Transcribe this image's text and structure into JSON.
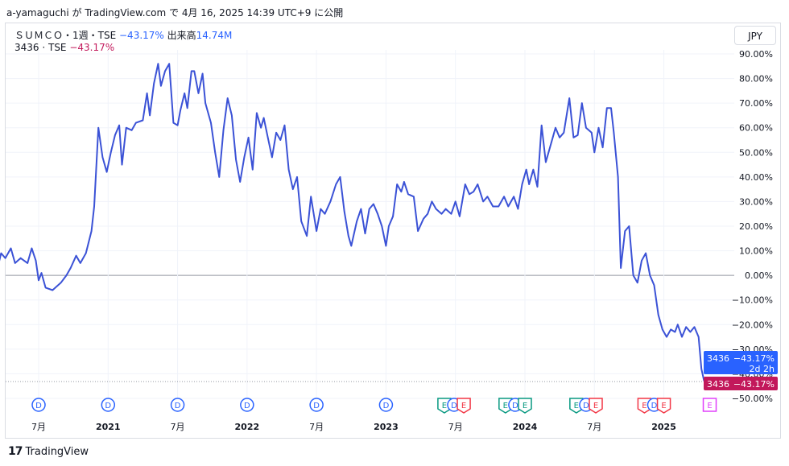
{
  "header": {
    "caption": "a-yamaguchi が TradingView.com で 4月 16, 2025 14:39 UTC+9 に公開"
  },
  "legend": {
    "line1_name": "ＳＵＭＣＯ・1週・TSE",
    "line1_change": "−43.17%",
    "line1_volume_label": "出来高",
    "line1_volume": "14.74M",
    "line2_name": "3436 · TSE",
    "line2_change": "−43.17%"
  },
  "currency": "JPY",
  "footer": {
    "brand": "TradingView",
    "logo": "tradingview-logo"
  },
  "colors": {
    "line": "#3b52d6",
    "price_tag_blue": "#2962ff",
    "price_tag_pink": "#c2185b",
    "zero_line": "#9598a1"
  },
  "chart_data": {
    "type": "line",
    "unit": "%",
    "ylim": [
      -50,
      90
    ],
    "y_ticks": [
      "90.00%",
      "80.00%",
      "70.00%",
      "60.00%",
      "50.00%",
      "40.00%",
      "30.00%",
      "20.00%",
      "10.00%",
      "0.00%",
      "−10.00%",
      "−20.00%",
      "−30.00%",
      "−40.00%",
      "−50.00%"
    ],
    "x_ticks": [
      {
        "label": "7月",
        "t": 2020.5
      },
      {
        "label": "2021",
        "t": 2021.0
      },
      {
        "label": "7月",
        "t": 2021.5
      },
      {
        "label": "2022",
        "t": 2022.0
      },
      {
        "label": "7月",
        "t": 2022.5
      },
      {
        "label": "2023",
        "t": 2023.0
      },
      {
        "label": "7月",
        "t": 2023.5
      },
      {
        "label": "2024",
        "t": 2024.0
      },
      {
        "label": "7月",
        "t": 2024.5
      },
      {
        "label": "2025",
        "t": 2025.0
      }
    ],
    "series": [
      {
        "values": [
          [
            2020.13,
            0
          ],
          [
            2020.15,
            -6
          ],
          [
            2020.2,
            2
          ],
          [
            2020.23,
            9
          ],
          [
            2020.26,
            7
          ],
          [
            2020.3,
            11
          ],
          [
            2020.33,
            5
          ],
          [
            2020.37,
            7
          ],
          [
            2020.42,
            5
          ],
          [
            2020.45,
            11
          ],
          [
            2020.48,
            6
          ],
          [
            2020.5,
            -2
          ],
          [
            2020.52,
            1
          ],
          [
            2020.55,
            -5
          ],
          [
            2020.6,
            -6
          ],
          [
            2020.66,
            -3
          ],
          [
            2020.7,
            0
          ],
          [
            2020.73,
            3
          ],
          [
            2020.77,
            8
          ],
          [
            2020.8,
            5
          ],
          [
            2020.84,
            9
          ],
          [
            2020.88,
            18
          ],
          [
            2020.9,
            28
          ],
          [
            2020.93,
            60
          ],
          [
            2020.96,
            48
          ],
          [
            2020.99,
            42
          ],
          [
            2021.02,
            50
          ],
          [
            2021.05,
            57
          ],
          [
            2021.08,
            61
          ],
          [
            2021.1,
            45
          ],
          [
            2021.13,
            60
          ],
          [
            2021.17,
            59
          ],
          [
            2021.2,
            62
          ],
          [
            2021.25,
            63
          ],
          [
            2021.28,
            74
          ],
          [
            2021.3,
            65
          ],
          [
            2021.33,
            78
          ],
          [
            2021.36,
            86
          ],
          [
            2021.38,
            77
          ],
          [
            2021.41,
            83
          ],
          [
            2021.44,
            86
          ],
          [
            2021.47,
            62
          ],
          [
            2021.5,
            61
          ],
          [
            2021.52,
            67
          ],
          [
            2021.55,
            74
          ],
          [
            2021.57,
            68
          ],
          [
            2021.6,
            83
          ],
          [
            2021.62,
            83
          ],
          [
            2021.65,
            74
          ],
          [
            2021.68,
            82
          ],
          [
            2021.7,
            70
          ],
          [
            2021.74,
            62
          ],
          [
            2021.77,
            50
          ],
          [
            2021.8,
            40
          ],
          [
            2021.83,
            59
          ],
          [
            2021.86,
            72
          ],
          [
            2021.89,
            65
          ],
          [
            2021.92,
            47
          ],
          [
            2021.95,
            38
          ],
          [
            2021.98,
            48
          ],
          [
            2022.01,
            56
          ],
          [
            2022.04,
            43
          ],
          [
            2022.07,
            66
          ],
          [
            2022.1,
            60
          ],
          [
            2022.12,
            64
          ],
          [
            2022.15,
            56
          ],
          [
            2022.18,
            48
          ],
          [
            2022.21,
            58
          ],
          [
            2022.24,
            55
          ],
          [
            2022.27,
            61
          ],
          [
            2022.3,
            43
          ],
          [
            2022.33,
            35
          ],
          [
            2022.36,
            40
          ],
          [
            2022.39,
            22
          ],
          [
            2022.43,
            16
          ],
          [
            2022.46,
            32
          ],
          [
            2022.5,
            18
          ],
          [
            2022.53,
            27
          ],
          [
            2022.56,
            25
          ],
          [
            2022.6,
            30
          ],
          [
            2022.64,
            37
          ],
          [
            2022.67,
            40
          ],
          [
            2022.7,
            26
          ],
          [
            2022.73,
            16
          ],
          [
            2022.75,
            12
          ],
          [
            2022.79,
            22
          ],
          [
            2022.82,
            27
          ],
          [
            2022.85,
            17
          ],
          [
            2022.88,
            27
          ],
          [
            2022.91,
            29
          ],
          [
            2022.94,
            25
          ],
          [
            2022.97,
            20
          ],
          [
            2023.0,
            12
          ],
          [
            2023.02,
            20
          ],
          [
            2023.05,
            24
          ],
          [
            2023.08,
            37
          ],
          [
            2023.11,
            34
          ],
          [
            2023.13,
            38
          ],
          [
            2023.16,
            33
          ],
          [
            2023.2,
            32
          ],
          [
            2023.23,
            18
          ],
          [
            2023.27,
            23
          ],
          [
            2023.3,
            25
          ],
          [
            2023.33,
            30
          ],
          [
            2023.36,
            27
          ],
          [
            2023.4,
            25
          ],
          [
            2023.43,
            27
          ],
          [
            2023.47,
            25
          ],
          [
            2023.5,
            30
          ],
          [
            2023.53,
            24
          ],
          [
            2023.57,
            37
          ],
          [
            2023.6,
            33
          ],
          [
            2023.63,
            34
          ],
          [
            2023.66,
            37
          ],
          [
            2023.7,
            30
          ],
          [
            2023.73,
            32
          ],
          [
            2023.77,
            28
          ],
          [
            2023.81,
            28
          ],
          [
            2023.85,
            32
          ],
          [
            2023.88,
            28
          ],
          [
            2023.92,
            32
          ],
          [
            2023.95,
            27
          ],
          [
            2023.98,
            37
          ],
          [
            2024.01,
            43
          ],
          [
            2024.03,
            37
          ],
          [
            2024.06,
            43
          ],
          [
            2024.09,
            36
          ],
          [
            2024.12,
            61
          ],
          [
            2024.15,
            46
          ],
          [
            2024.18,
            52
          ],
          [
            2024.22,
            60
          ],
          [
            2024.25,
            56
          ],
          [
            2024.28,
            58
          ],
          [
            2024.32,
            72
          ],
          [
            2024.35,
            56
          ],
          [
            2024.38,
            57
          ],
          [
            2024.41,
            70
          ],
          [
            2024.44,
            60
          ],
          [
            2024.48,
            58
          ],
          [
            2024.5,
            50
          ],
          [
            2024.53,
            60
          ],
          [
            2024.56,
            52
          ],
          [
            2024.59,
            68
          ],
          [
            2024.62,
            68
          ],
          [
            2024.64,
            58
          ],
          [
            2024.67,
            40
          ],
          [
            2024.69,
            3
          ],
          [
            2024.72,
            18
          ],
          [
            2024.75,
            20
          ],
          [
            2024.78,
            0
          ],
          [
            2024.81,
            -3
          ],
          [
            2024.84,
            6
          ],
          [
            2024.87,
            9
          ],
          [
            2024.9,
            0
          ],
          [
            2024.93,
            -4
          ],
          [
            2024.96,
            -16
          ],
          [
            2024.99,
            -22
          ],
          [
            2025.02,
            -25
          ],
          [
            2025.05,
            -22
          ],
          [
            2025.08,
            -23
          ],
          [
            2025.1,
            -20
          ],
          [
            2025.13,
            -25
          ],
          [
            2025.16,
            -21
          ],
          [
            2025.19,
            -23
          ],
          [
            2025.22,
            -21
          ],
          [
            2025.25,
            -25
          ],
          [
            2025.27,
            -38
          ],
          [
            2025.29,
            -43
          ]
        ]
      }
    ],
    "last_value": "−43.17%",
    "price_tags": [
      {
        "ticker": "3436",
        "value": "−43.17%",
        "countdown": "2d 2h",
        "style": "blue"
      },
      {
        "ticker": "3436",
        "value": "−43.17%",
        "style": "pink"
      }
    ],
    "events": [
      {
        "t": 2020.5,
        "kind": "D"
      },
      {
        "t": 2021.0,
        "kind": "D"
      },
      {
        "t": 2021.5,
        "kind": "D"
      },
      {
        "t": 2022.0,
        "kind": "D"
      },
      {
        "t": 2022.5,
        "kind": "D"
      },
      {
        "t": 2023.0,
        "kind": "D"
      },
      {
        "t": 2023.42,
        "kind": "E",
        "color": "green"
      },
      {
        "t": 2023.49,
        "kind": "D"
      },
      {
        "t": 2023.56,
        "kind": "E",
        "color": "red"
      },
      {
        "t": 2023.86,
        "kind": "E",
        "color": "green"
      },
      {
        "t": 2023.93,
        "kind": "D"
      },
      {
        "t": 2024.0,
        "kind": "E",
        "color": "green"
      },
      {
        "t": 2024.37,
        "kind": "E",
        "color": "green"
      },
      {
        "t": 2024.44,
        "kind": "D"
      },
      {
        "t": 2024.51,
        "kind": "E",
        "color": "red"
      },
      {
        "t": 2024.86,
        "kind": "E",
        "color": "red"
      },
      {
        "t": 2024.93,
        "kind": "D"
      },
      {
        "t": 2025.0,
        "kind": "E",
        "color": "red"
      },
      {
        "t": 2025.33,
        "kind": "E",
        "color": "purple"
      }
    ]
  }
}
